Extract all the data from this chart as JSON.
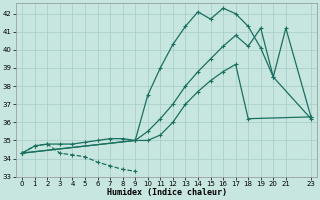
{
  "xlabel": "Humidex (Indice chaleur)",
  "bg_color": "#c8e6e0",
  "grid_color": "#a8ccc8",
  "line_color": "#1a7060",
  "xlim": [
    -0.5,
    23.5
  ],
  "ylim": [
    33,
    42.6
  ],
  "yticks": [
    33,
    34,
    35,
    36,
    37,
    38,
    39,
    40,
    41,
    42
  ],
  "xticks": [
    0,
    1,
    2,
    3,
    4,
    5,
    6,
    7,
    8,
    9,
    10,
    11,
    12,
    13,
    14,
    15,
    16,
    17,
    18,
    19,
    20,
    21,
    23
  ],
  "s1_x": [
    0,
    1,
    2,
    3,
    4,
    5,
    6,
    7,
    8,
    9
  ],
  "s1_y": [
    34.3,
    34.7,
    34.8,
    34.3,
    34.2,
    34.1,
    33.8,
    33.6,
    33.4,
    33.3
  ],
  "s1_dash": true,
  "s2_x": [
    0,
    1,
    2,
    3,
    4,
    5,
    6,
    7,
    8,
    9,
    10,
    11,
    12,
    13,
    14,
    15,
    16,
    17,
    18,
    23
  ],
  "s2_y": [
    34.3,
    34.7,
    34.8,
    34.8,
    34.8,
    34.9,
    35.0,
    35.1,
    35.1,
    35.0,
    35.0,
    35.3,
    36.0,
    37.0,
    37.7,
    38.3,
    38.8,
    39.2,
    36.2,
    36.3
  ],
  "s3_x": [
    0,
    9,
    10,
    11,
    12,
    13,
    14,
    15,
    16,
    17,
    18,
    19,
    20,
    23
  ],
  "s3_y": [
    34.3,
    35.0,
    37.5,
    39.0,
    40.3,
    41.3,
    42.1,
    41.7,
    42.3,
    42.0,
    41.3,
    40.1,
    38.5,
    36.2
  ],
  "s4_x": [
    0,
    9,
    10,
    11,
    12,
    13,
    14,
    15,
    16,
    17,
    18,
    19,
    20,
    21,
    23
  ],
  "s4_y": [
    34.3,
    35.0,
    35.5,
    36.2,
    37.0,
    38.0,
    38.8,
    39.5,
    40.2,
    40.8,
    40.2,
    41.2,
    38.5,
    41.2,
    36.3
  ]
}
